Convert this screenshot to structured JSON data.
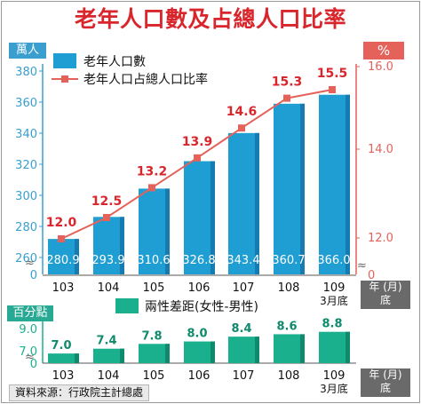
{
  "title": "老年人口數及占總人口比率",
  "units": {
    "left": "萬人",
    "right": "%",
    "bottom": "百分點"
  },
  "legend": {
    "bars": "老年人口數",
    "line": "老年人口占總人口比率",
    "diff": "兩性差距(女性-男性)"
  },
  "year_tag": {
    "line1": "年 (月)",
    "line2": "底"
  },
  "source": "資料來源：行政院主計總處",
  "colors": {
    "bar": "#1f9ed3",
    "bar_dark": "#157bb0",
    "line": "#e4625a",
    "line_dark": "#d8262c",
    "diff_bar": "#1aaf8d",
    "diff_dark": "#0f8a6c",
    "title": "#d8262c",
    "axis_left": "#3a9fcf",
    "axis_right": "#e4625a"
  },
  "chart_data": [
    {
      "type": "bar",
      "title": "老年人口數",
      "categories": [
        "103",
        "104",
        "105",
        "106",
        "107",
        "108",
        "109"
      ],
      "category_sublabels": [
        "",
        "",
        "",
        "",
        "",
        "",
        "3月底"
      ],
      "series": [
        {
          "name": "老年人口數",
          "values": [
            280.9,
            293.9,
            310.6,
            326.8,
            343.4,
            360.7,
            366.0
          ]
        }
      ],
      "ylabel": "萬人",
      "ylim": [
        0,
        380
      ],
      "yticks": [
        "0",
        "260",
        "280",
        "300",
        "320",
        "340",
        "360",
        "380"
      ],
      "axis_break": true
    },
    {
      "type": "line",
      "categories": [
        "103",
        "104",
        "105",
        "106",
        "107",
        "108",
        "109"
      ],
      "series": [
        {
          "name": "老年人口占總人口比率",
          "values": [
            12.0,
            12.5,
            13.2,
            13.9,
            14.6,
            15.3,
            15.5
          ]
        }
      ],
      "ylabel": "%",
      "ylim": [
        0,
        16.0
      ],
      "yticks": [
        "0",
        "12.0",
        "14.0",
        "16.0"
      ],
      "axis_break": true
    },
    {
      "type": "bar",
      "title": "兩性差距(女性-男性)",
      "categories": [
        "103",
        "104",
        "105",
        "106",
        "107",
        "108",
        "109"
      ],
      "category_sublabels": [
        "",
        "",
        "",
        "",
        "",
        "",
        "3月底"
      ],
      "series": [
        {
          "name": "兩性差距(女性-男性)",
          "values": [
            7.0,
            7.4,
            7.8,
            8.0,
            8.4,
            8.6,
            8.8
          ]
        }
      ],
      "ylabel": "百分點",
      "ylim": [
        0,
        9.0
      ],
      "yticks": [
        "0",
        "7.0",
        "9.0"
      ],
      "axis_break": true
    }
  ]
}
